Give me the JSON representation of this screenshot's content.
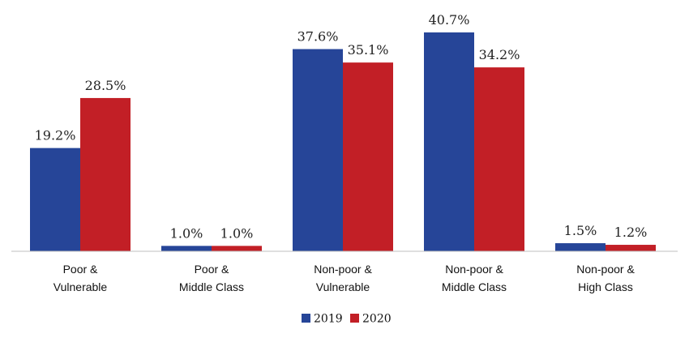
{
  "chart_data": {
    "type": "bar",
    "categories": [
      [
        "Poor &",
        "Vulnerable"
      ],
      [
        "Poor &",
        "Middle Class"
      ],
      [
        "Non-poor &",
        "Vulnerable"
      ],
      [
        "Non-poor &",
        "Middle Class"
      ],
      [
        "Non-poor &",
        "High Class"
      ]
    ],
    "series": [
      {
        "name": "2019",
        "values": [
          19.2,
          1.0,
          37.6,
          40.7,
          1.5
        ],
        "labels": [
          "19.2%",
          "1.0%",
          "37.6%",
          "40.7%",
          "1.5%"
        ],
        "color": "#264598"
      },
      {
        "name": "2020",
        "values": [
          28.5,
          1.0,
          35.1,
          34.2,
          1.2
        ],
        "labels": [
          "28.5%",
          "1.0%",
          "35.1%",
          "34.2%",
          "1.2%"
        ],
        "color": "#c21f26"
      }
    ],
    "title": "",
    "xlabel": "",
    "ylabel": "",
    "ylim": [
      0,
      40.7
    ],
    "grid": false,
    "legend": "bottom"
  }
}
